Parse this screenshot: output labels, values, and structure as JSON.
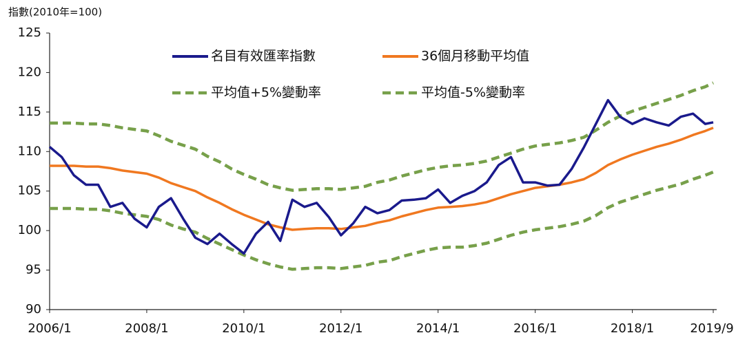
{
  "chart_data": {
    "type": "line",
    "y_label": "指數(2010年=100)",
    "x": [
      "2006/1",
      "2006/4",
      "2006/7",
      "2006/10",
      "2007/1",
      "2007/4",
      "2007/7",
      "2007/10",
      "2008/1",
      "2008/4",
      "2008/7",
      "2008/10",
      "2009/1",
      "2009/4",
      "2009/7",
      "2009/10",
      "2010/1",
      "2010/4",
      "2010/7",
      "2010/10",
      "2011/1",
      "2011/4",
      "2011/7",
      "2011/10",
      "2012/1",
      "2012/4",
      "2012/7",
      "2012/10",
      "2013/1",
      "2013/4",
      "2013/7",
      "2013/10",
      "2014/1",
      "2014/4",
      "2014/7",
      "2014/10",
      "2015/1",
      "2015/4",
      "2015/7",
      "2015/10",
      "2016/1",
      "2016/4",
      "2016/7",
      "2016/10",
      "2017/1",
      "2017/4",
      "2017/7",
      "2017/10",
      "2018/1",
      "2018/4",
      "2018/7",
      "2018/10",
      "2019/1",
      "2019/4",
      "2019/7",
      "2019/9"
    ],
    "series": [
      {
        "name": "名目有效匯率指數",
        "color": "#1a1a8c",
        "dash": false,
        "values": [
          110.6,
          109.3,
          107.0,
          105.8,
          105.8,
          103.0,
          103.5,
          101.5,
          100.4,
          103.0,
          104.1,
          101.5,
          99.1,
          98.3,
          99.6,
          98.3,
          97.1,
          99.6,
          101.1,
          98.7,
          103.9,
          103.0,
          103.5,
          101.7,
          99.4,
          100.9,
          103.0,
          102.2,
          102.6,
          103.8,
          103.9,
          104.1,
          105.2,
          103.5,
          104.4,
          105.0,
          106.1,
          108.3,
          109.3,
          106.1,
          106.1,
          105.7,
          105.8,
          107.8,
          110.5,
          113.5,
          116.5,
          114.4,
          113.5,
          114.2,
          113.7,
          113.3,
          114.4,
          114.8,
          113.5,
          113.7
        ]
      },
      {
        "name": "36個月移動平均值",
        "color": "#f07820",
        "dash": false,
        "values": [
          108.2,
          108.2,
          108.2,
          108.1,
          108.1,
          107.9,
          107.6,
          107.4,
          107.2,
          106.7,
          106.0,
          105.5,
          105.0,
          104.2,
          103.5,
          102.7,
          102.0,
          101.4,
          100.8,
          100.4,
          100.1,
          100.2,
          100.3,
          100.3,
          100.2,
          100.4,
          100.6,
          101.0,
          101.3,
          101.8,
          102.2,
          102.6,
          102.9,
          103.0,
          103.1,
          103.3,
          103.6,
          104.1,
          104.6,
          105.0,
          105.4,
          105.6,
          105.8,
          106.1,
          106.5,
          107.3,
          108.3,
          109.0,
          109.6,
          110.1,
          110.6,
          111.0,
          111.5,
          112.1,
          112.6,
          113.0
        ]
      },
      {
        "name": "平均值+5%變動率",
        "color": "#77a04a",
        "dash": true,
        "values": [
          113.6,
          113.6,
          113.6,
          113.5,
          113.5,
          113.3,
          113.0,
          112.8,
          112.6,
          112.0,
          111.3,
          110.8,
          110.3,
          109.4,
          108.7,
          107.8,
          107.1,
          106.5,
          105.8,
          105.4,
          105.1,
          105.2,
          105.3,
          105.3,
          105.2,
          105.4,
          105.6,
          106.1,
          106.4,
          106.9,
          107.3,
          107.7,
          108.0,
          108.2,
          108.3,
          108.5,
          108.8,
          109.3,
          109.8,
          110.3,
          110.7,
          110.9,
          111.1,
          111.4,
          111.8,
          112.7,
          113.7,
          114.5,
          115.1,
          115.6,
          116.1,
          116.6,
          117.1,
          117.7,
          118.2,
          118.7
        ]
      },
      {
        "name": "平均值-5%變動率",
        "color": "#77a04a",
        "dash": true,
        "values": [
          102.8,
          102.8,
          102.8,
          102.7,
          102.7,
          102.5,
          102.2,
          102.0,
          101.8,
          101.4,
          100.7,
          100.2,
          99.8,
          99.0,
          98.3,
          97.6,
          96.9,
          96.3,
          95.8,
          95.4,
          95.1,
          95.2,
          95.3,
          95.3,
          95.2,
          95.4,
          95.6,
          96.0,
          96.2,
          96.7,
          97.1,
          97.5,
          97.8,
          97.9,
          97.9,
          98.1,
          98.4,
          98.9,
          99.4,
          99.8,
          100.1,
          100.3,
          100.5,
          100.8,
          101.2,
          101.9,
          102.9,
          103.6,
          104.1,
          104.6,
          105.1,
          105.5,
          105.9,
          106.5,
          107.0,
          107.4
        ]
      }
    ],
    "ylim": [
      90,
      125
    ],
    "yticks": [
      90,
      95,
      100,
      105,
      110,
      115,
      120,
      125
    ],
    "xticks": [
      "2006/1",
      "2008/1",
      "2010/1",
      "2012/1",
      "2014/1",
      "2016/1",
      "2018/1",
      "2019/9"
    ],
    "grid": false
  }
}
